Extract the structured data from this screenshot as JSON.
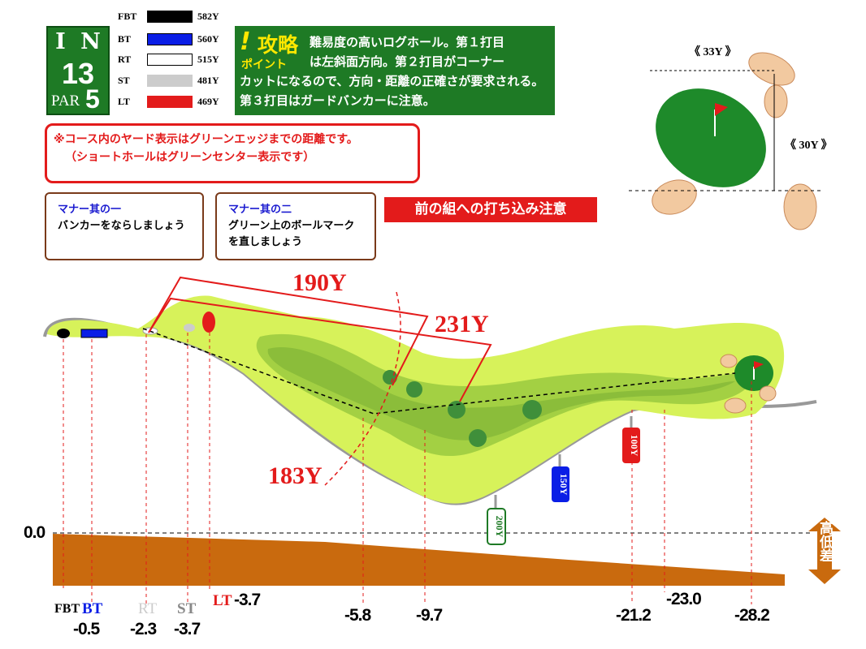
{
  "hole": {
    "side_letters": [
      "I",
      "N"
    ],
    "number": "13",
    "par_label": "PAR",
    "par_value": "5"
  },
  "tees": [
    {
      "label": "FBT",
      "yards": "582Y",
      "color": "#000000"
    },
    {
      "label": "BT",
      "yards": "560Y",
      "color": "#0a1ee6"
    },
    {
      "label": "RT",
      "yards": "515Y",
      "color": "#ffffff"
    },
    {
      "label": "ST",
      "yards": "481Y",
      "color": "#cccccc"
    },
    {
      "label": "LT",
      "yards": "469Y",
      "color": "#e31b1b"
    }
  ],
  "strategy": {
    "mark": "!",
    "title": "攻略",
    "subtitle": "ポイント",
    "text_line1": "難易度の高いログホール。第１打目",
    "text_line2": "は左斜面方向。第２打目がコーナー",
    "text_rest": "カットになるので、方向・距離の正確さが要求される。第３打目はガードバンカーに注意。"
  },
  "notice": {
    "line1": "※コース内のヤード表示はグリーンエッジまでの距離です。",
    "line2": "（ショートホールはグリーンセンター表示です）"
  },
  "manners": [
    {
      "heading": "マナー其の一",
      "body": "バンカーをならしましょう"
    },
    {
      "heading": "マナー其の二",
      "body": "グリーン上のボールマーク\n を直しましょう"
    }
  ],
  "warning": "前の組への打ち込み注意",
  "green": {
    "width_label": "《 33Y 》",
    "depth_label": "《 30Y 》"
  },
  "distances": {
    "d190": "190Y",
    "d231": "231Y",
    "d183": "183Y"
  },
  "markers": {
    "m200": "200Y",
    "m150": "150Y",
    "m100": "100Y",
    "m200_color": "#1e7a25",
    "m150_color": "#0a1ee6",
    "m100_color": "#e31b1b"
  },
  "elevation": {
    "zero": "0.0",
    "side_label": "高低差",
    "tee_labels": {
      "fbt": "FBT",
      "bt": "BT",
      "rt": "RT",
      "st": "ST",
      "lt": "LT"
    },
    "values": {
      "bt": "-0.5",
      "rt": "-2.3",
      "st": "-3.7",
      "lt": "-3.7",
      "p1": "-5.8",
      "p2": "-9.7",
      "p3": "-21.2",
      "p4": "-23.0",
      "green": "-28.2"
    }
  }
}
